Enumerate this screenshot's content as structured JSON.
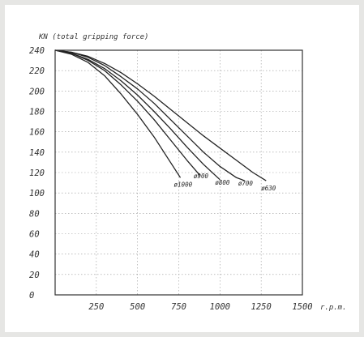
{
  "chart_data": {
    "type": "line",
    "ylabel": "KN (total gripping force)",
    "xlabel": "r.p.m.",
    "xlim": [
      0,
      1500
    ],
    "ylim": [
      0,
      240
    ],
    "x_ticks": [
      "250",
      "500",
      "750",
      "1000",
      "1250",
      "1500"
    ],
    "x_tick_values": [
      250,
      500,
      750,
      1000,
      1250,
      1500
    ],
    "y_ticks": [
      "0",
      "20",
      "40",
      "60",
      "80",
      "100",
      "120",
      "140",
      "160",
      "180",
      "200",
      "220",
      "240"
    ],
    "y_tick_values": [
      0,
      20,
      40,
      60,
      80,
      100,
      120,
      140,
      160,
      180,
      200,
      220,
      240
    ],
    "grid": true,
    "series": [
      {
        "name": "ø1000",
        "x": [
          0,
          100,
          200,
          300,
          400,
          500,
          600,
          700,
          760
        ],
        "y": [
          240,
          236,
          228,
          215,
          197,
          177,
          155,
          130,
          115
        ]
      },
      {
        "name": "ø900",
        "x": [
          0,
          100,
          200,
          300,
          400,
          500,
          600,
          700,
          800,
          880
        ],
        "y": [
          240,
          237,
          230,
          220,
          206,
          190,
          172,
          152,
          132,
          117
        ]
      },
      {
        "name": "ø800",
        "x": [
          0,
          100,
          200,
          300,
          400,
          500,
          600,
          700,
          800,
          900,
          1000
        ],
        "y": [
          240,
          237,
          231,
          222,
          210,
          196,
          180,
          163,
          145,
          128,
          113
        ]
      },
      {
        "name": "ø700",
        "x": [
          0,
          100,
          200,
          300,
          400,
          500,
          600,
          700,
          800,
          900,
          1000,
          1100,
          1150
        ],
        "y": [
          240,
          238,
          233,
          225,
          214,
          202,
          188,
          172,
          156,
          140,
          126,
          115,
          112
        ]
      },
      {
        "name": "ø630",
        "x": [
          0,
          100,
          200,
          300,
          400,
          500,
          600,
          700,
          800,
          900,
          1000,
          1100,
          1200,
          1280
        ],
        "y": [
          240,
          238,
          234,
          227,
          218,
          207,
          195,
          182,
          169,
          156,
          144,
          132,
          120,
          112
        ]
      }
    ]
  }
}
